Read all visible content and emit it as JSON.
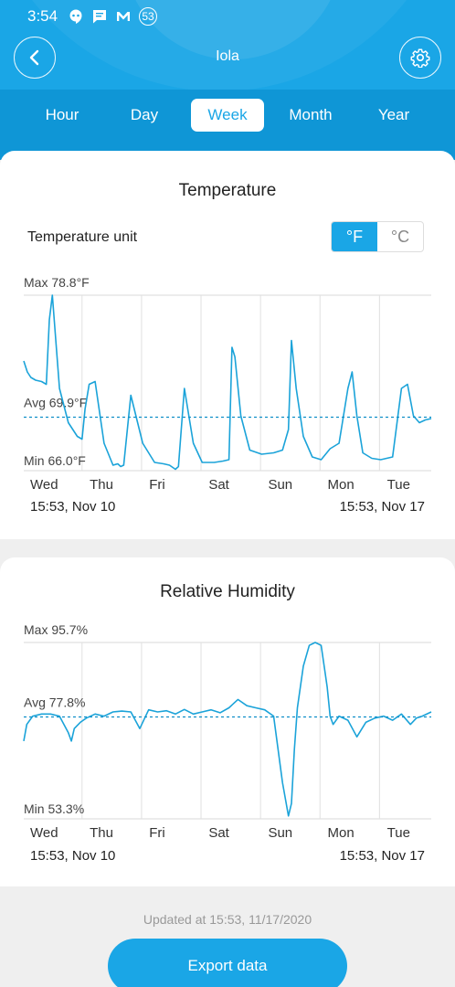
{
  "status_bar": {
    "time": "3:54",
    "notification_count": "53"
  },
  "header": {
    "title": "Iola"
  },
  "tabs": [
    {
      "label": "Hour",
      "active": false
    },
    {
      "label": "Day",
      "active": false
    },
    {
      "label": "Week",
      "active": true
    },
    {
      "label": "Month",
      "active": false
    },
    {
      "label": "Year",
      "active": false
    }
  ],
  "temperature": {
    "title": "Temperature",
    "unit_label": "Temperature unit",
    "unit_f": "°F",
    "unit_c": "°C",
    "selected_unit": "°F",
    "start_date": "15:53, Nov 10",
    "end_date": "15:53, Nov 17"
  },
  "humidity": {
    "title": "Relative Humidity",
    "start_date": "15:53, Nov 10",
    "end_date": "15:53, Nov 17"
  },
  "footer": {
    "updated": "Updated at 15:53, 11/17/2020",
    "export_label": "Export data"
  },
  "colors": {
    "accent": "#1aa6e6",
    "line": "#1ba3d9",
    "avg": "#0f8fc8"
  },
  "chart_data": [
    {
      "type": "line",
      "title": "Temperature",
      "categories": [
        "Wed",
        "Thu",
        "Fri",
        "Sat",
        "Sun",
        "Mon",
        "Tue"
      ],
      "ylim": [
        66.0,
        78.8
      ],
      "max_label": "Max 78.8°F",
      "avg_label": "Avg 69.9°F",
      "min_label": "Min 66.0°F",
      "avg": 69.9,
      "grid": true,
      "series": [
        {
          "x": [
            0,
            0.06,
            0.12,
            0.2,
            0.3,
            0.38,
            0.43,
            0.48,
            0.53,
            0.6,
            0.75,
            0.9,
            0.98,
            1.03,
            1.1,
            1.2,
            1.35,
            1.5,
            1.58,
            1.63,
            1.68,
            1.8,
            2.0,
            2.2,
            2.35,
            2.45,
            2.55,
            2.6,
            2.7,
            2.85,
            3.0,
            3.2,
            3.35,
            3.45,
            3.5,
            3.55,
            3.65,
            3.8,
            4.0,
            4.2,
            4.35,
            4.45,
            4.5,
            4.58,
            4.7,
            4.85,
            5.0,
            5.15,
            5.3,
            5.45,
            5.52,
            5.6,
            5.7,
            5.85,
            6.0,
            6.2,
            6.35,
            6.45,
            6.55,
            6.65,
            6.75,
            6.85
          ],
          "y": [
            74.0,
            73.2,
            72.8,
            72.6,
            72.5,
            72.3,
            77.0,
            78.8,
            76.0,
            72.0,
            69.5,
            68.5,
            68.3,
            70.5,
            72.3,
            72.5,
            68.0,
            66.4,
            66.5,
            66.3,
            66.4,
            71.5,
            68.0,
            66.6,
            66.5,
            66.4,
            66.1,
            66.3,
            72.0,
            68.0,
            66.6,
            66.6,
            66.7,
            66.8,
            75.0,
            74.3,
            70.0,
            67.5,
            67.2,
            67.3,
            67.5,
            69.0,
            75.5,
            72.0,
            68.5,
            67.0,
            66.8,
            67.6,
            68.0,
            72.0,
            73.2,
            70.0,
            67.3,
            66.9,
            66.8,
            67.0,
            72.0,
            72.3,
            70.0,
            69.5,
            69.7,
            69.8
          ]
        }
      ]
    },
    {
      "type": "line",
      "title": "Relative Humidity",
      "categories": [
        "Wed",
        "Thu",
        "Fri",
        "Sat",
        "Sun",
        "Mon",
        "Tue"
      ],
      "ylim": [
        53.3,
        95.7
      ],
      "max_label": "Max 95.7%",
      "avg_label": "Avg 77.8%",
      "min_label": "Min 53.3%",
      "avg": 77.8,
      "grid": true,
      "series": [
        {
          "x": [
            0,
            0.05,
            0.15,
            0.3,
            0.45,
            0.6,
            0.75,
            0.8,
            0.85,
            0.95,
            1.05,
            1.2,
            1.35,
            1.5,
            1.65,
            1.8,
            1.95,
            2.1,
            2.25,
            2.4,
            2.55,
            2.7,
            2.85,
            3.0,
            3.15,
            3.3,
            3.45,
            3.6,
            3.75,
            3.9,
            4.05,
            4.2,
            4.35,
            4.45,
            4.5,
            4.55,
            4.6,
            4.7,
            4.8,
            4.9,
            5.0,
            5.05,
            5.1,
            5.15,
            5.2,
            5.3,
            5.45,
            5.6,
            5.75,
            5.9,
            6.05,
            6.2,
            6.35,
            6.5,
            6.6,
            6.7,
            6.85
          ],
          "y": [
            72.0,
            76.0,
            78.0,
            78.5,
            78.5,
            78.0,
            74.0,
            72.0,
            75.0,
            76.5,
            77.5,
            78.5,
            78.0,
            79.0,
            79.2,
            79.0,
            75.0,
            79.5,
            79.0,
            79.3,
            78.5,
            79.6,
            78.5,
            79.0,
            79.5,
            78.8,
            80.0,
            82.0,
            80.5,
            80.0,
            79.5,
            78.0,
            62.0,
            54.0,
            57.0,
            70.0,
            80.0,
            90.0,
            95.0,
            95.7,
            95.0,
            90.0,
            85.0,
            78.0,
            76.0,
            78.0,
            77.0,
            73.0,
            76.5,
            77.5,
            78.0,
            77.0,
            78.5,
            76.0,
            77.5,
            78.0,
            79.0
          ]
        }
      ]
    }
  ]
}
